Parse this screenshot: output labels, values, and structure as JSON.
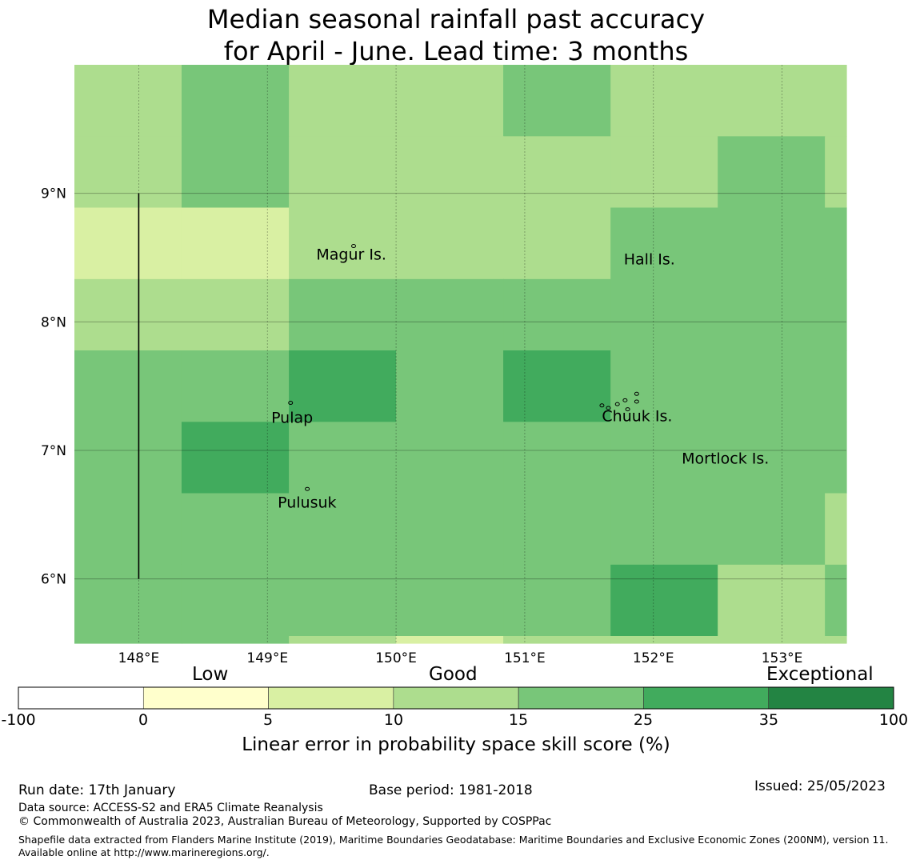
{
  "title": {
    "line1": "Median seasonal rainfall past accuracy",
    "line2": "for April - June. Lead time: 3 months"
  },
  "map": {
    "lon_range": [
      147.5,
      153.5
    ],
    "lat_range": [
      5.5,
      10.0
    ],
    "lon_ticks": [
      {
        "value": 148,
        "label": "148°E"
      },
      {
        "value": 149,
        "label": "149°E"
      },
      {
        "value": 150,
        "label": "150°E"
      },
      {
        "value": 151,
        "label": "151°E"
      },
      {
        "value": 152,
        "label": "152°E"
      },
      {
        "value": 153,
        "label": "153°E"
      }
    ],
    "lat_ticks": [
      {
        "value": 9,
        "label": "9°N"
      },
      {
        "value": 8,
        "label": "8°N"
      },
      {
        "value": 7,
        "label": "7°N"
      },
      {
        "value": 6,
        "label": "6°N"
      }
    ],
    "boundary_line": {
      "lon": 148,
      "lat_from": 6,
      "lat_to": 9
    },
    "grid_lons": [
      147.5,
      148.333,
      149.167,
      150.0,
      150.833,
      151.667,
      152.5,
      153.333,
      153.5
    ],
    "grid_lats": [
      10.0,
      9.444,
      8.889,
      8.333,
      7.778,
      7.222,
      6.667,
      6.111,
      5.556,
      5.5
    ],
    "grid_categories": [
      [
        3,
        4,
        3,
        3,
        4,
        3,
        3,
        3
      ],
      [
        3,
        4,
        3,
        3,
        3,
        3,
        4,
        3
      ],
      [
        2,
        2,
        3,
        3,
        3,
        4,
        4,
        4
      ],
      [
        3,
        3,
        4,
        4,
        4,
        4,
        4,
        4
      ],
      [
        4,
        4,
        5,
        4,
        5,
        4,
        4,
        4
      ],
      [
        4,
        5,
        4,
        4,
        4,
        4,
        4,
        4
      ],
      [
        4,
        4,
        4,
        4,
        4,
        4,
        4,
        3
      ],
      [
        4,
        4,
        4,
        4,
        4,
        5,
        3,
        4
      ],
      [
        4,
        4,
        3,
        2,
        3,
        3,
        3,
        3
      ]
    ],
    "places": [
      {
        "name": "Magur Is.",
        "lon": 149.38,
        "lat": 8.52
      },
      {
        "name": "Hall Is.",
        "lon": 151.77,
        "lat": 8.48
      },
      {
        "name": "Pulap",
        "lon": 149.03,
        "lat": 7.25
      },
      {
        "name": "Chuuk Is.",
        "lon": 151.6,
        "lat": 7.26
      },
      {
        "name": "Mortlock Is.",
        "lon": 152.22,
        "lat": 6.93
      },
      {
        "name": "Pulusuk",
        "lon": 149.08,
        "lat": 6.59
      }
    ],
    "islands": [
      {
        "lon": 149.18,
        "lat": 7.37
      },
      {
        "lon": 149.31,
        "lat": 6.7
      },
      {
        "lon": 149.67,
        "lat": 8.59
      },
      {
        "lon": 151.6,
        "lat": 7.35
      },
      {
        "lon": 151.65,
        "lat": 7.33
      },
      {
        "lon": 151.72,
        "lat": 7.36
      },
      {
        "lon": 151.78,
        "lat": 7.39
      },
      {
        "lon": 151.8,
        "lat": 7.32
      },
      {
        "lon": 151.87,
        "lat": 7.38
      },
      {
        "lon": 151.87,
        "lat": 7.44
      }
    ]
  },
  "colorbar": {
    "categories": [
      {
        "label": "Low"
      },
      {
        "label": "Good"
      },
      {
        "label": "Exceptional"
      }
    ],
    "bins": [
      {
        "from": -100,
        "to": 0,
        "color": "#ffffff"
      },
      {
        "from": 0,
        "to": 5,
        "color": "#ffffcc"
      },
      {
        "from": 5,
        "to": 10,
        "color": "#d9f0a3"
      },
      {
        "from": 10,
        "to": 15,
        "color": "#addd8e"
      },
      {
        "from": 15,
        "to": 25,
        "color": "#78c679"
      },
      {
        "from": 25,
        "to": 35,
        "color": "#41ab5d"
      },
      {
        "from": 35,
        "to": 100,
        "color": "#238443"
      }
    ],
    "tick_labels": [
      "-100",
      "0",
      "5",
      "10",
      "15",
      "25",
      "35",
      "100"
    ],
    "label": "Linear error in probability space skill score (%)"
  },
  "footer": {
    "run_date": "Run date: 17th January",
    "base_period": "Base period: 1981-2018",
    "issued": "Issued: 25/05/2023",
    "data_source": "Data source: ACCESS-S2 and ERA5 Climate Reanalysis",
    "copyright": "© Commonwealth of Australia 2023, Australian Bureau of Meteorology, Supported by COSPPac",
    "shapefile": "Shapefile data extracted from Flanders Marine Institute (2019), Maritime Boundaries Geodatabase: Maritime Boundaries and Exclusive Economic Zones (200NM), version 11. Available online at http://www.marineregions.org/."
  }
}
